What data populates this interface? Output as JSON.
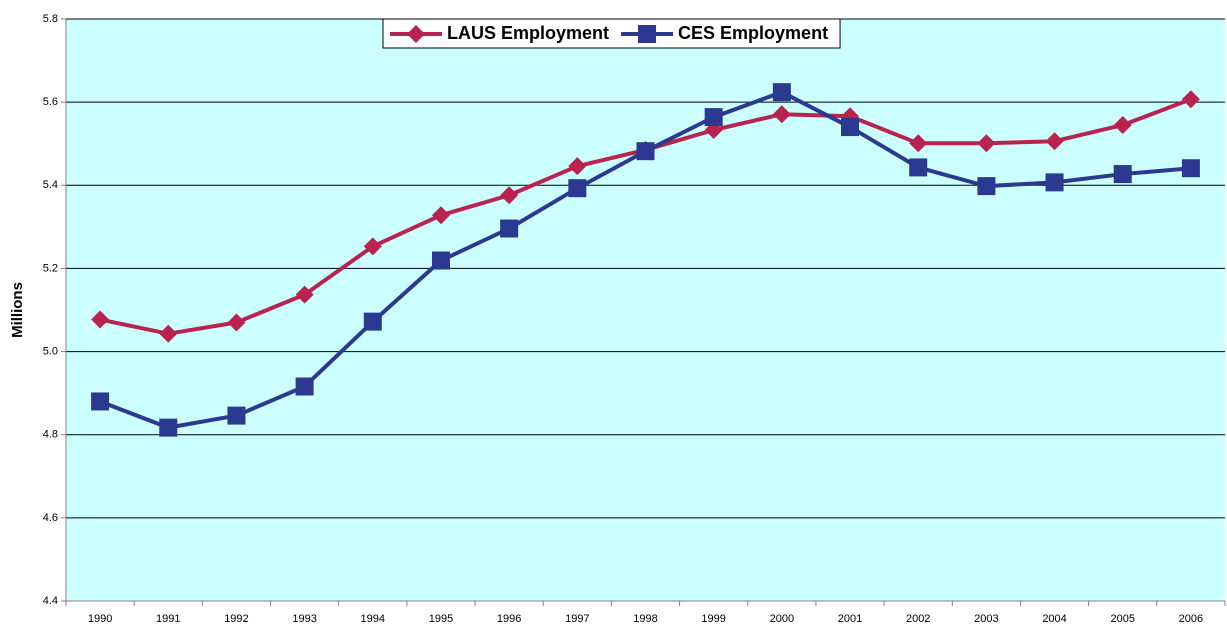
{
  "chart_data": {
    "type": "line",
    "y_label": "Millions",
    "categories": [
      "1990",
      "1991",
      "1992",
      "1993",
      "1994",
      "1995",
      "1996",
      "1997",
      "1998",
      "1999",
      "2000",
      "2001",
      "2002",
      "2003",
      "2004",
      "2005",
      "2006"
    ],
    "series": [
      {
        "name": "LAUS Employment",
        "color": "#b8234f",
        "marker": "diamond",
        "values": [
          5.077,
          5.043,
          5.07,
          5.137,
          5.253,
          5.328,
          5.376,
          5.446,
          5.485,
          5.533,
          5.571,
          5.566,
          5.501,
          5.501,
          5.506,
          5.545,
          5.607
        ]
      },
      {
        "name": "CES Employment",
        "color": "#2b3990",
        "marker": "square",
        "values": [
          4.88,
          4.817,
          4.846,
          4.916,
          5.072,
          5.219,
          5.296,
          5.393,
          5.482,
          5.564,
          5.624,
          5.54,
          5.443,
          5.398,
          5.407,
          5.427,
          5.441
        ]
      }
    ],
    "ylim": [
      4.4,
      5.8
    ],
    "yticks": [
      4.4,
      4.6,
      4.8,
      {
        "value": 5,
        "label": "5.0"
      },
      5.2,
      5.4,
      5.6,
      5.8
    ],
    "grid": true,
    "legend": "top",
    "background": "#ccffff"
  }
}
